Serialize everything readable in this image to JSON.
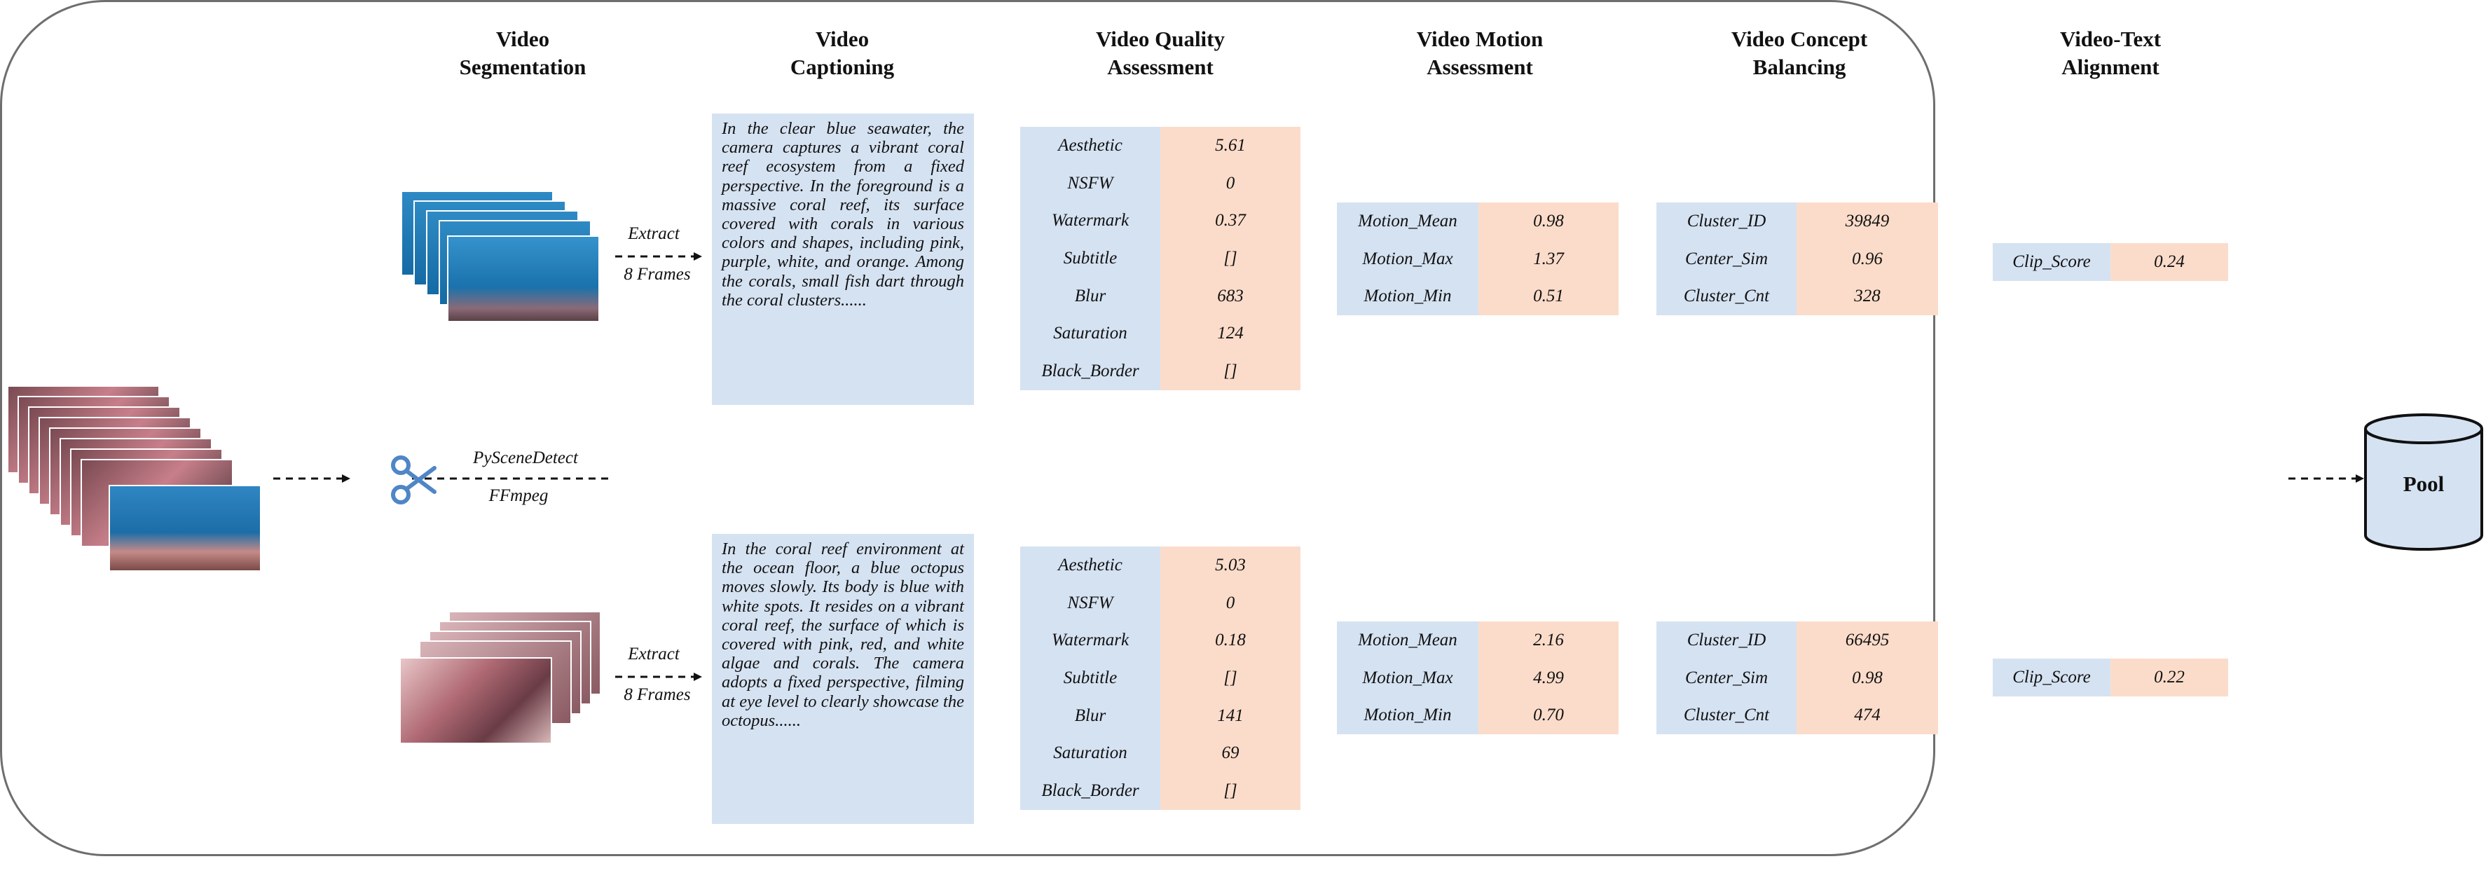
{
  "columns": [
    {
      "line1": "Video",
      "line2": "Segmentation"
    },
    {
      "line1": "Video",
      "line2": "Captioning"
    },
    {
      "line1": "Video Quality",
      "line2": "Assessment"
    },
    {
      "line1": "Video Motion",
      "line2": "Assessment"
    },
    {
      "line1": "Video Concept",
      "line2": "Balancing"
    },
    {
      "line1": "Video-Text",
      "line2": "Alignment"
    }
  ],
  "segmentation": {
    "tool1": "PySceneDetect",
    "tool2": "FFmpeg"
  },
  "extract": {
    "line1": "Extract",
    "line2": "8 Frames"
  },
  "pool_label": "Pool",
  "clips": [
    {
      "caption": "In the clear blue seawater, the camera captures a vibrant coral reef ecosystem from a fixed perspective. In the foreground is a massive coral reef, its surface covered with corals in various colors and shapes, including pink, purple, white, and orange. Among the corals, small fish dart through the coral clusters......",
      "quality": [
        {
          "key": "Aesthetic",
          "value": "5.61"
        },
        {
          "key": "NSFW",
          "value": "0"
        },
        {
          "key": "Watermark",
          "value": "0.37"
        },
        {
          "key": "Subtitle",
          "value": "[]"
        },
        {
          "key": "Blur",
          "value": "683"
        },
        {
          "key": "Saturation",
          "value": "124"
        },
        {
          "key": "Black_Border",
          "value": "[]"
        }
      ],
      "motion": [
        {
          "key": "Motion_Mean",
          "value": "0.98"
        },
        {
          "key": "Motion_Max",
          "value": "1.37"
        },
        {
          "key": "Motion_Min",
          "value": "0.51"
        }
      ],
      "concept": [
        {
          "key": "Cluster_ID",
          "value": "39849"
        },
        {
          "key": "Center_Sim",
          "value": "0.96"
        },
        {
          "key": "Cluster_Cnt",
          "value": "328"
        }
      ],
      "alignment": [
        {
          "key": "Clip_Score",
          "value": "0.24"
        }
      ]
    },
    {
      "caption": "In the coral reef environment at the ocean floor, a blue octopus moves slowly. Its body is blue with white spots. It resides on a vibrant coral reef, the surface of which is covered with pink, red, and white algae and corals. The camera adopts a fixed perspective, filming at eye level to clearly showcase the octopus......",
      "quality": [
        {
          "key": "Aesthetic",
          "value": "5.03"
        },
        {
          "key": "NSFW",
          "value": "0"
        },
        {
          "key": "Watermark",
          "value": "0.18"
        },
        {
          "key": "Subtitle",
          "value": "[]"
        },
        {
          "key": "Blur",
          "value": "141"
        },
        {
          "key": "Saturation",
          "value": "69"
        },
        {
          "key": "Black_Border",
          "value": "[]"
        }
      ],
      "motion": [
        {
          "key": "Motion_Mean",
          "value": "2.16"
        },
        {
          "key": "Motion_Max",
          "value": "4.99"
        },
        {
          "key": "Motion_Min",
          "value": "0.70"
        }
      ],
      "concept": [
        {
          "key": "Cluster_ID",
          "value": "66495"
        },
        {
          "key": "Center_Sim",
          "value": "0.98"
        },
        {
          "key": "Cluster_Cnt",
          "value": "474"
        }
      ],
      "alignment": [
        {
          "key": "Clip_Score",
          "value": "0.22"
        }
      ]
    }
  ]
}
